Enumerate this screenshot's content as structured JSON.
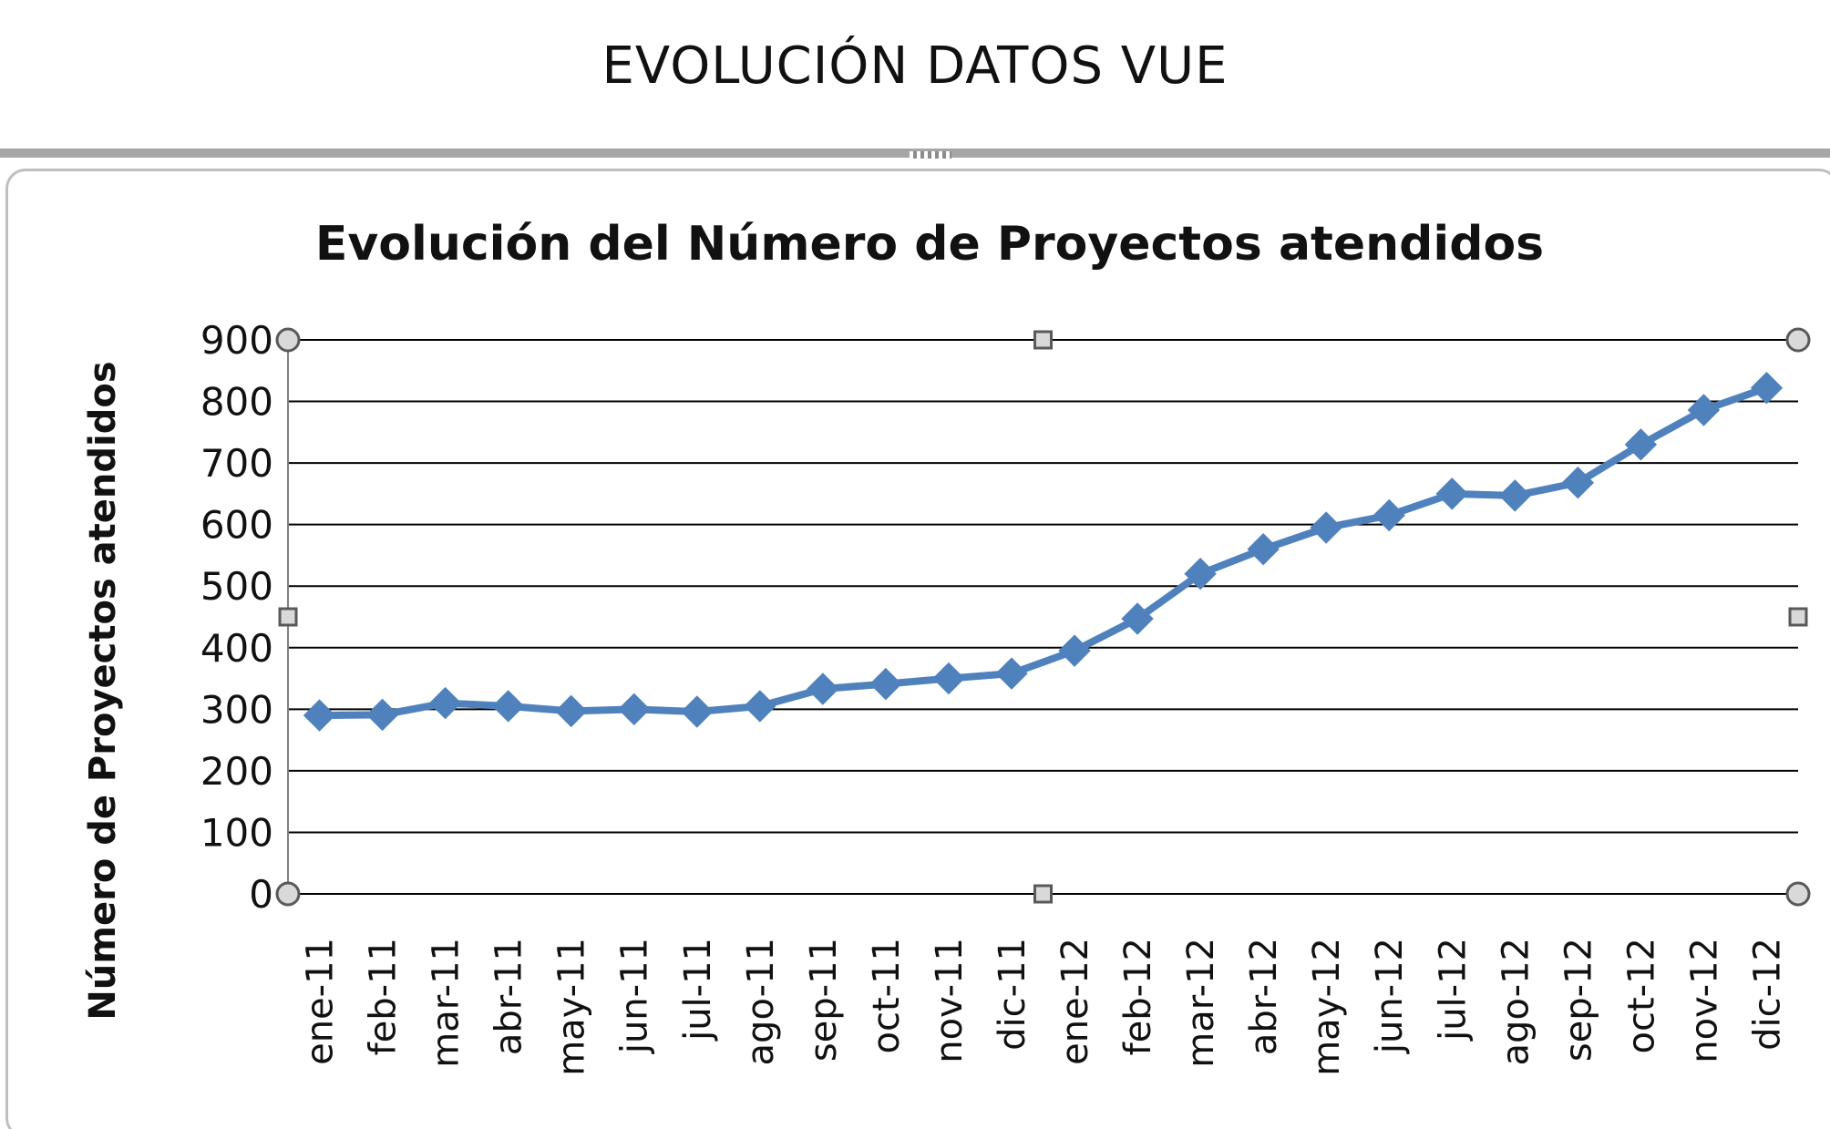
{
  "page": {
    "title": "EVOLUCIÓN DATOS VUE"
  },
  "colors": {
    "series": "#4f81bd",
    "gridline": "#000000",
    "frame": "#a6a6a6",
    "handle_fill": "#d9d9d9",
    "handle_stroke": "#595959"
  },
  "chart_data": {
    "type": "line",
    "title": "Evolución del Número de Proyectos atendidos",
    "xlabel": "",
    "ylabel": "Número de Proyectos atendidos",
    "ylim": [
      0,
      900
    ],
    "yticks": [
      0,
      100,
      200,
      300,
      400,
      500,
      600,
      700,
      800,
      900
    ],
    "grid": true,
    "legend": "none",
    "marker": "diamond",
    "categories": [
      "ene-11",
      "feb-11",
      "mar-11",
      "abr-11",
      "may-11",
      "jun-11",
      "jul-11",
      "ago-11",
      "sep-11",
      "oct-11",
      "nov-11",
      "dic-11",
      "ene-12",
      "feb-12",
      "mar-12",
      "abr-12",
      "may-12",
      "jun-12",
      "jul-12",
      "ago-12",
      "sep-12",
      "oct-12",
      "nov-12",
      "dic-12"
    ],
    "series": [
      {
        "values": [
          290,
          291,
          310,
          305,
          297,
          300,
          296,
          305,
          333,
          341,
          350,
          358,
          395,
          447,
          520,
          560,
          595,
          615,
          650,
          647,
          668,
          730,
          786,
          822
        ]
      }
    ]
  }
}
